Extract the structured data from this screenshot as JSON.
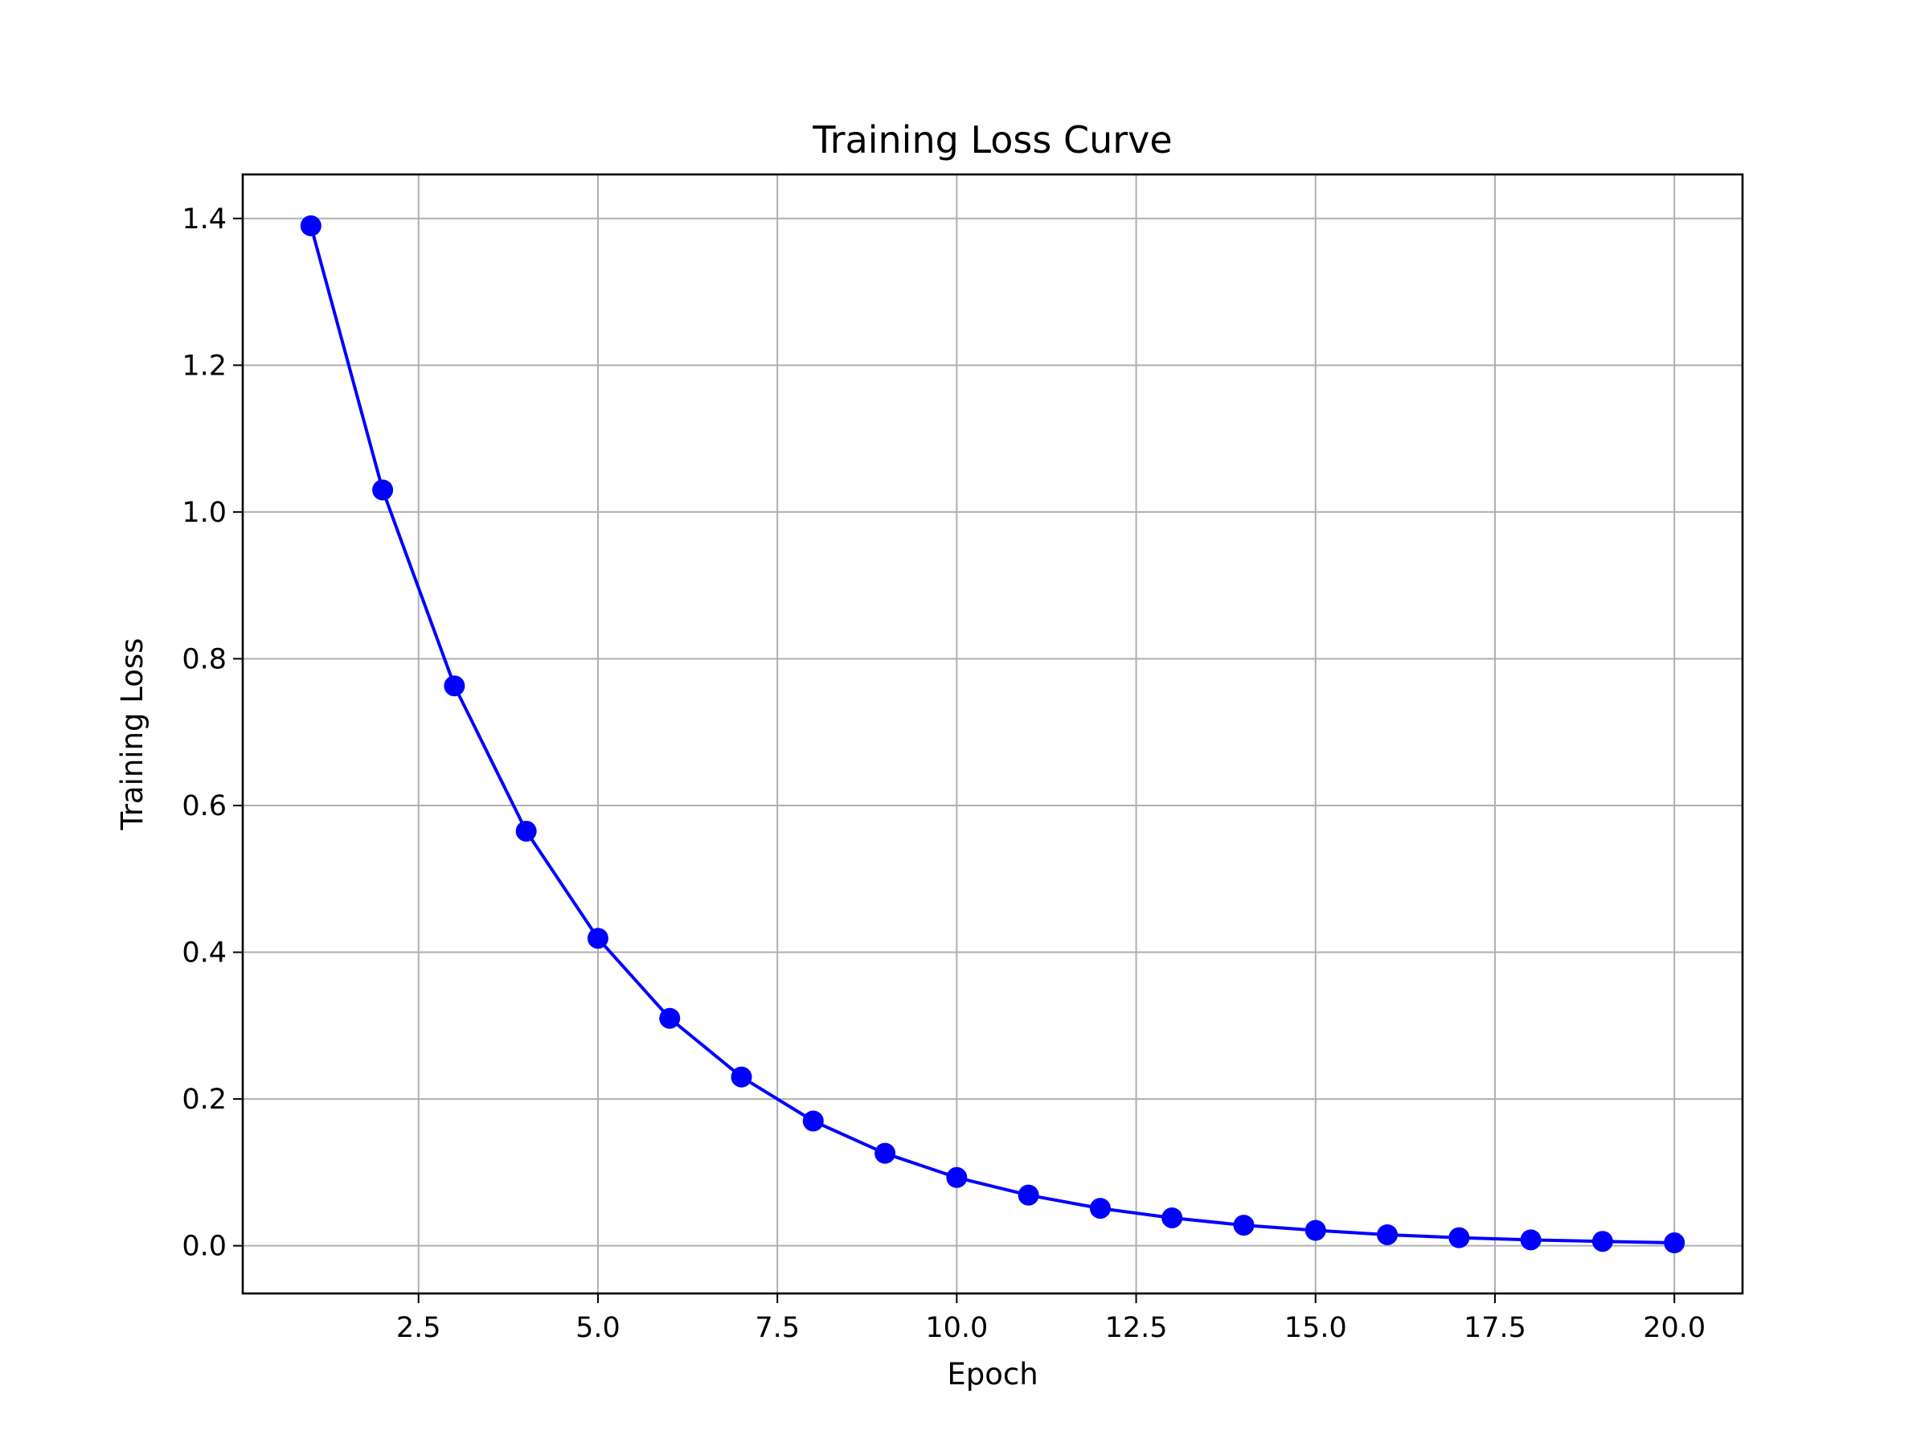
{
  "chart_data": {
    "type": "line",
    "title": "Training Loss Curve",
    "xlabel": "Epoch",
    "ylabel": "Training Loss",
    "x": [
      1,
      2,
      3,
      4,
      5,
      6,
      7,
      8,
      9,
      10,
      11,
      12,
      13,
      14,
      15,
      16,
      17,
      18,
      19,
      20
    ],
    "series": [
      {
        "values": [
          1.39,
          1.03,
          0.763,
          0.565,
          0.419,
          0.31,
          0.23,
          0.17,
          0.126,
          0.093,
          0.069,
          0.051,
          0.038,
          0.028,
          0.021,
          0.015,
          0.011,
          0.008,
          0.006,
          0.004
        ],
        "color": "#0000ff",
        "marker": "circle"
      }
    ],
    "xlim": [
      0.05,
      20.95
    ],
    "ylim": [
      -0.065,
      1.46
    ],
    "xticks": [
      "2.5",
      "5.0",
      "7.5",
      "10.0",
      "12.5",
      "15.0",
      "17.5",
      "20.0"
    ],
    "yticks": [
      "0.0",
      "0.2",
      "0.4",
      "0.6",
      "0.8",
      "1.0",
      "1.2",
      "1.4"
    ],
    "grid": true
  }
}
